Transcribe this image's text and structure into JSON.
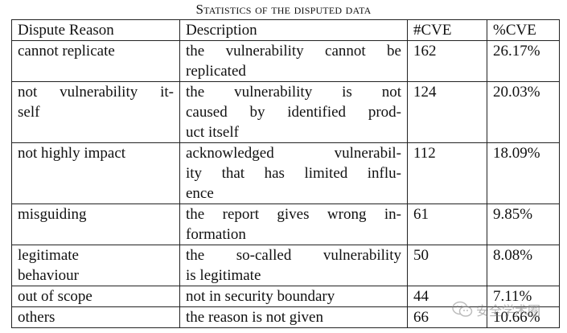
{
  "caption": "Statistics of the disputed data",
  "headers": [
    "Dispute Reason",
    "Description",
    "#CVE",
    "%CVE"
  ],
  "rows": [
    {
      "reason": [
        "cannot replicate"
      ],
      "description": [
        "the vulnerability cannot be",
        "replicated"
      ],
      "cve": "162",
      "pct": "26.17%"
    },
    {
      "reason": [
        "not vulnerability it-",
        "self"
      ],
      "description": [
        "the vulnerability is not",
        "caused by identified prod-",
        "uct itself"
      ],
      "cve": "124",
      "pct": "20.03%"
    },
    {
      "reason": [
        "not highly impact"
      ],
      "description": [
        "acknowledged vulnerabil-",
        "ity that has limited influ-",
        "ence"
      ],
      "cve": "112",
      "pct": "18.09%"
    },
    {
      "reason": [
        "misguiding"
      ],
      "description": [
        "the report gives wrong in-",
        "formation"
      ],
      "cve": "61",
      "pct": "9.85%"
    },
    {
      "reason": [
        "legitimate",
        "behaviour"
      ],
      "description": [
        "the so-called vulnerability",
        "is legitimate"
      ],
      "cve": "50",
      "pct": "8.08%"
    },
    {
      "reason": [
        "out of scope"
      ],
      "description": [
        "not in security boundary"
      ],
      "cve": "44",
      "pct": "7.11%"
    },
    {
      "reason": [
        "others"
      ],
      "description": [
        "the reason is not given"
      ],
      "cve": "66",
      "pct": "10.66%"
    }
  ],
  "watermark": {
    "icon": "wechat-icon",
    "text": "安全学术圈"
  }
}
